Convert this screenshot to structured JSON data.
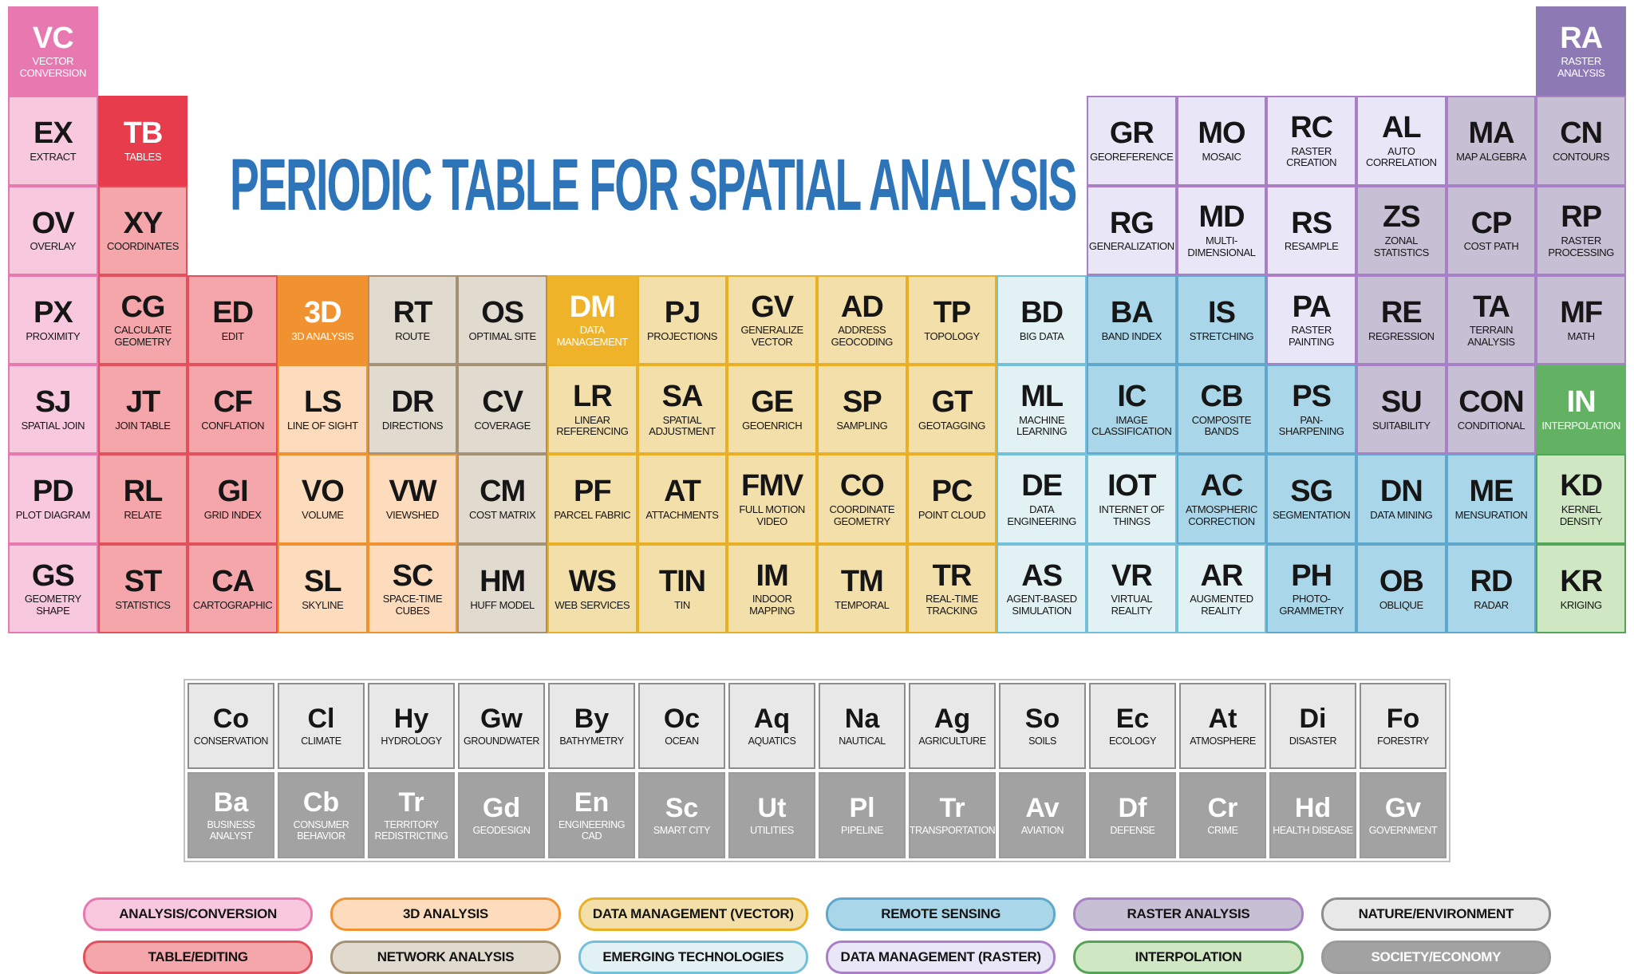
{
  "title": "PERIODIC TABLE FOR SPATIAL ANALYSIS",
  "title_color": "#2e74b8",
  "categories": {
    "analysis_conversion": {
      "legend_label": "ANALYSIS/CONVERSION",
      "fill": "#f8c9de",
      "border": "#e878b0",
      "header_fill": "#e878b0"
    },
    "table_editing": {
      "legend_label": "TABLE/EDITING",
      "fill": "#f4a6ab",
      "border": "#e2505c",
      "header_fill": "#e73c4c"
    },
    "analysis_3d": {
      "legend_label": "3D ANALYSIS",
      "fill": "#fcdcbd",
      "border": "#f0922f",
      "header_fill": "#f0922f"
    },
    "network_analysis": {
      "legend_label": "NETWORK ANALYSIS",
      "fill": "#e1dacf",
      "border": "#a59174"
    },
    "dm_vector": {
      "legend_label": "DATA MANAGEMENT (VECTOR)",
      "fill": "#f3dfa9",
      "border": "#e9af25",
      "header_fill": "#efb32a"
    },
    "emerging_tech": {
      "legend_label": "EMERGING TECHNOLOGIES",
      "fill": "#e2f1f4",
      "border": "#74c0da"
    },
    "remote_sensing": {
      "legend_label": "REMOTE SENSING",
      "fill": "#a9d6e9",
      "border": "#5fa8cc"
    },
    "dm_raster": {
      "legend_label": "DATA MANAGEMENT (RASTER)",
      "fill": "#e9e6f8",
      "border": "#ab7fc8"
    },
    "raster_analysis": {
      "legend_label": "RASTER ANALYSIS",
      "fill": "#c7bfd4",
      "border": "#a880c6",
      "header_fill": "#8d7ab5"
    },
    "interpolation": {
      "legend_label": "INTERPOLATION",
      "fill": "#cfe7c2",
      "border": "#55a357",
      "header_fill": "#63b163"
    },
    "nature_environment": {
      "legend_label": "NATURE/ENVIRONMENT",
      "fill": "#e8e8e8",
      "border": "#8d8d8d"
    },
    "society_economy": {
      "legend_label": "SOCIETY/ECONOMY",
      "fill": "#a2a2a2",
      "border": "#9a9a9a"
    }
  },
  "elements": [
    {
      "symbol": "VC",
      "name": "VECTOR CONVERSION",
      "col": 1,
      "row": 1,
      "cat": "analysis_conversion",
      "header": true
    },
    {
      "symbol": "RA",
      "name": "RASTER ANALYSIS",
      "col": 18,
      "row": 1,
      "cat": "raster_analysis",
      "header": true
    },
    {
      "symbol": "EX",
      "name": "EXTRACT",
      "col": 1,
      "row": 2,
      "cat": "analysis_conversion"
    },
    {
      "symbol": "TB",
      "name": "TABLES",
      "col": 2,
      "row": 2,
      "cat": "table_editing",
      "header": true
    },
    {
      "symbol": "GR",
      "name": "GEOREFERENCE",
      "col": 13,
      "row": 2,
      "cat": "dm_raster"
    },
    {
      "symbol": "MO",
      "name": "MOSAIC",
      "col": 14,
      "row": 2,
      "cat": "dm_raster"
    },
    {
      "symbol": "RC",
      "name": "RASTER CREATION",
      "col": 15,
      "row": 2,
      "cat": "dm_raster"
    },
    {
      "symbol": "AL",
      "name": "AUTO CORRELATION",
      "col": 16,
      "row": 2,
      "cat": "dm_raster"
    },
    {
      "symbol": "MA",
      "name": "MAP ALGEBRA",
      "col": 17,
      "row": 2,
      "cat": "raster_analysis"
    },
    {
      "symbol": "CN",
      "name": "CONTOURS",
      "col": 18,
      "row": 2,
      "cat": "raster_analysis"
    },
    {
      "symbol": "OV",
      "name": "OVERLAY",
      "col": 1,
      "row": 3,
      "cat": "analysis_conversion"
    },
    {
      "symbol": "XY",
      "name": "COORDINATES",
      "col": 2,
      "row": 3,
      "cat": "table_editing"
    },
    {
      "symbol": "RG",
      "name": "GENERALIZATION",
      "col": 13,
      "row": 3,
      "cat": "dm_raster"
    },
    {
      "symbol": "MD",
      "name": "MULTI-DIMENSIONAL",
      "col": 14,
      "row": 3,
      "cat": "dm_raster"
    },
    {
      "symbol": "RS",
      "name": "RESAMPLE",
      "col": 15,
      "row": 3,
      "cat": "dm_raster"
    },
    {
      "symbol": "ZS",
      "name": "ZONAL STATISTICS",
      "col": 16,
      "row": 3,
      "cat": "raster_analysis"
    },
    {
      "symbol": "CP",
      "name": "COST PATH",
      "col": 17,
      "row": 3,
      "cat": "raster_analysis"
    },
    {
      "symbol": "RP",
      "name": "RASTER PROCESSING",
      "col": 18,
      "row": 3,
      "cat": "raster_analysis"
    },
    {
      "symbol": "PX",
      "name": "PROXIMITY",
      "col": 1,
      "row": 4,
      "cat": "analysis_conversion"
    },
    {
      "symbol": "CG",
      "name": "CALCULATE GEOMETRY",
      "col": 2,
      "row": 4,
      "cat": "table_editing"
    },
    {
      "symbol": "ED",
      "name": "EDIT",
      "col": 3,
      "row": 4,
      "cat": "table_editing"
    },
    {
      "symbol": "3D",
      "name": "3D ANALYSIS",
      "col": 4,
      "row": 4,
      "cat": "analysis_3d",
      "header": true
    },
    {
      "symbol": "RT",
      "name": "ROUTE",
      "col": 5,
      "row": 4,
      "cat": "network_analysis"
    },
    {
      "symbol": "OS",
      "name": "OPTIMAL SITE",
      "col": 6,
      "row": 4,
      "cat": "network_analysis"
    },
    {
      "symbol": "DM",
      "name": "DATA MANAGEMENT",
      "col": 7,
      "row": 4,
      "cat": "dm_vector",
      "header": true
    },
    {
      "symbol": "PJ",
      "name": "PROJECTIONS",
      "col": 8,
      "row": 4,
      "cat": "dm_vector"
    },
    {
      "symbol": "GV",
      "name": "GENERALIZE VECTOR",
      "col": 9,
      "row": 4,
      "cat": "dm_vector"
    },
    {
      "symbol": "AD",
      "name": "ADDRESS GEOCODING",
      "col": 10,
      "row": 4,
      "cat": "dm_vector"
    },
    {
      "symbol": "TP",
      "name": "TOPOLOGY",
      "col": 11,
      "row": 4,
      "cat": "dm_vector"
    },
    {
      "symbol": "BD",
      "name": "BIG DATA",
      "col": 12,
      "row": 4,
      "cat": "emerging_tech"
    },
    {
      "symbol": "BA",
      "name": "BAND INDEX",
      "col": 13,
      "row": 4,
      "cat": "remote_sensing"
    },
    {
      "symbol": "IS",
      "name": "STRETCHING",
      "col": 14,
      "row": 4,
      "cat": "remote_sensing"
    },
    {
      "symbol": "PA",
      "name": "RASTER PAINTING",
      "col": 15,
      "row": 4,
      "cat": "dm_raster"
    },
    {
      "symbol": "RE",
      "name": "REGRESSION",
      "col": 16,
      "row": 4,
      "cat": "raster_analysis"
    },
    {
      "symbol": "TA",
      "name": "TERRAIN ANALYSIS",
      "col": 17,
      "row": 4,
      "cat": "raster_analysis"
    },
    {
      "symbol": "MF",
      "name": "MATH",
      "col": 18,
      "row": 4,
      "cat": "raster_analysis"
    },
    {
      "symbol": "SJ",
      "name": "SPATIAL JOIN",
      "col": 1,
      "row": 5,
      "cat": "analysis_conversion"
    },
    {
      "symbol": "JT",
      "name": "JOIN TABLE",
      "col": 2,
      "row": 5,
      "cat": "table_editing"
    },
    {
      "symbol": "CF",
      "name": "CONFLATION",
      "col": 3,
      "row": 5,
      "cat": "table_editing"
    },
    {
      "symbol": "LS",
      "name": "LINE OF SIGHT",
      "col": 4,
      "row": 5,
      "cat": "analysis_3d"
    },
    {
      "symbol": "DR",
      "name": "DIRECTIONS",
      "col": 5,
      "row": 5,
      "cat": "network_analysis"
    },
    {
      "symbol": "CV",
      "name": "COVERAGE",
      "col": 6,
      "row": 5,
      "cat": "network_analysis"
    },
    {
      "symbol": "LR",
      "name": "LINEAR REFERENCING",
      "col": 7,
      "row": 5,
      "cat": "dm_vector"
    },
    {
      "symbol": "SA",
      "name": "SPATIAL ADJUSTMENT",
      "col": 8,
      "row": 5,
      "cat": "dm_vector"
    },
    {
      "symbol": "GE",
      "name": "GEOENRICH",
      "col": 9,
      "row": 5,
      "cat": "dm_vector"
    },
    {
      "symbol": "SP",
      "name": "SAMPLING",
      "col": 10,
      "row": 5,
      "cat": "dm_vector"
    },
    {
      "symbol": "GT",
      "name": "GEOTAGGING",
      "col": 11,
      "row": 5,
      "cat": "dm_vector"
    },
    {
      "symbol": "ML",
      "name": "MACHINE LEARNING",
      "col": 12,
      "row": 5,
      "cat": "emerging_tech"
    },
    {
      "symbol": "IC",
      "name": "IMAGE CLASSIFICATION",
      "col": 13,
      "row": 5,
      "cat": "remote_sensing"
    },
    {
      "symbol": "CB",
      "name": "COMPOSITE BANDS",
      "col": 14,
      "row": 5,
      "cat": "remote_sensing"
    },
    {
      "symbol": "PS",
      "name": "PAN-SHARPENING",
      "col": 15,
      "row": 5,
      "cat": "remote_sensing"
    },
    {
      "symbol": "SU",
      "name": "SUITABILITY",
      "col": 16,
      "row": 5,
      "cat": "raster_analysis"
    },
    {
      "symbol": "CON",
      "name": "CONDITIONAL",
      "col": 17,
      "row": 5,
      "cat": "raster_analysis"
    },
    {
      "symbol": "IN",
      "name": "INTERPOLATION",
      "col": 18,
      "row": 5,
      "cat": "interpolation",
      "header": true
    },
    {
      "symbol": "PD",
      "name": "PLOT DIAGRAM",
      "col": 1,
      "row": 6,
      "cat": "analysis_conversion"
    },
    {
      "symbol": "RL",
      "name": "RELATE",
      "col": 2,
      "row": 6,
      "cat": "table_editing"
    },
    {
      "symbol": "GI",
      "name": "GRID INDEX",
      "col": 3,
      "row": 6,
      "cat": "table_editing"
    },
    {
      "symbol": "VO",
      "name": "VOLUME",
      "col": 4,
      "row": 6,
      "cat": "analysis_3d"
    },
    {
      "symbol": "VW",
      "name": "VIEWSHED",
      "col": 5,
      "row": 6,
      "cat": "analysis_3d"
    },
    {
      "symbol": "CM",
      "name": "COST MATRIX",
      "col": 6,
      "row": 6,
      "cat": "network_analysis"
    },
    {
      "symbol": "PF",
      "name": "PARCEL FABRIC",
      "col": 7,
      "row": 6,
      "cat": "dm_vector"
    },
    {
      "symbol": "AT",
      "name": "ATTACHMENTS",
      "col": 8,
      "row": 6,
      "cat": "dm_vector"
    },
    {
      "symbol": "FMV",
      "name": "FULL MOTION VIDEO",
      "col": 9,
      "row": 6,
      "cat": "dm_vector"
    },
    {
      "symbol": "CO",
      "name": "COORDINATE GEOMETRY",
      "col": 10,
      "row": 6,
      "cat": "dm_vector"
    },
    {
      "symbol": "PC",
      "name": "POINT CLOUD",
      "col": 11,
      "row": 6,
      "cat": "dm_vector"
    },
    {
      "symbol": "DE",
      "name": "DATA ENGINEERING",
      "col": 12,
      "row": 6,
      "cat": "emerging_tech"
    },
    {
      "symbol": "IOT",
      "name": "INTERNET OF THINGS",
      "col": 13,
      "row": 6,
      "cat": "emerging_tech"
    },
    {
      "symbol": "AC",
      "name": "ATMOSPHERIC CORRECTION",
      "col": 14,
      "row": 6,
      "cat": "remote_sensing"
    },
    {
      "symbol": "SG",
      "name": "SEGMENTATION",
      "col": 15,
      "row": 6,
      "cat": "remote_sensing"
    },
    {
      "symbol": "DN",
      "name": "DATA MINING",
      "col": 16,
      "row": 6,
      "cat": "remote_sensing"
    },
    {
      "symbol": "ME",
      "name": "MENSURATION",
      "col": 17,
      "row": 6,
      "cat": "remote_sensing"
    },
    {
      "symbol": "KD",
      "name": "KERNEL DENSITY",
      "col": 18,
      "row": 6,
      "cat": "interpolation"
    },
    {
      "symbol": "GS",
      "name": "GEOMETRY SHAPE",
      "col": 1,
      "row": 7,
      "cat": "analysis_conversion"
    },
    {
      "symbol": "ST",
      "name": "STATISTICS",
      "col": 2,
      "row": 7,
      "cat": "table_editing"
    },
    {
      "symbol": "CA",
      "name": "CARTOGRAPHIC",
      "col": 3,
      "row": 7,
      "cat": "table_editing"
    },
    {
      "symbol": "SL",
      "name": "SKYLINE",
      "col": 4,
      "row": 7,
      "cat": "analysis_3d"
    },
    {
      "symbol": "SC",
      "name": "SPACE-TIME CUBES",
      "col": 5,
      "row": 7,
      "cat": "analysis_3d"
    },
    {
      "symbol": "HM",
      "name": "HUFF MODEL",
      "col": 6,
      "row": 7,
      "cat": "network_analysis"
    },
    {
      "symbol": "WS",
      "name": "WEB SERVICES",
      "col": 7,
      "row": 7,
      "cat": "dm_vector"
    },
    {
      "symbol": "TIN",
      "name": "TIN",
      "col": 8,
      "row": 7,
      "cat": "dm_vector"
    },
    {
      "symbol": "IM",
      "name": "INDOOR MAPPING",
      "col": 9,
      "row": 7,
      "cat": "dm_vector"
    },
    {
      "symbol": "TM",
      "name": "TEMPORAL",
      "col": 10,
      "row": 7,
      "cat": "dm_vector"
    },
    {
      "symbol": "TR",
      "name": "REAL-TIME TRACKING",
      "col": 11,
      "row": 7,
      "cat": "dm_vector"
    },
    {
      "symbol": "AS",
      "name": "AGENT-BASED SIMULATION",
      "col": 12,
      "row": 7,
      "cat": "emerging_tech"
    },
    {
      "symbol": "VR",
      "name": "VIRTUAL REALITY",
      "col": 13,
      "row": 7,
      "cat": "emerging_tech"
    },
    {
      "symbol": "AR",
      "name": "AUGMENTED REALITY",
      "col": 14,
      "row": 7,
      "cat": "emerging_tech"
    },
    {
      "symbol": "PH",
      "name": "PHOTO-GRAMMETRY",
      "col": 15,
      "row": 7,
      "cat": "remote_sensing"
    },
    {
      "symbol": "OB",
      "name": "OBLIQUE",
      "col": 16,
      "row": 7,
      "cat": "remote_sensing"
    },
    {
      "symbol": "RD",
      "name": "RADAR",
      "col": 17,
      "row": 7,
      "cat": "remote_sensing"
    },
    {
      "symbol": "KR",
      "name": "KRIGING",
      "col": 18,
      "row": 7,
      "cat": "interpolation"
    }
  ],
  "application_fields": {
    "nature_row": [
      {
        "symbol": "Co",
        "name": "CONSERVATION"
      },
      {
        "symbol": "Cl",
        "name": "CLIMATE"
      },
      {
        "symbol": "Hy",
        "name": "HYDROLOGY"
      },
      {
        "symbol": "Gw",
        "name": "GROUNDWATER"
      },
      {
        "symbol": "By",
        "name": "BATHYMETRY"
      },
      {
        "symbol": "Oc",
        "name": "OCEAN"
      },
      {
        "symbol": "Aq",
        "name": "AQUATICS"
      },
      {
        "symbol": "Na",
        "name": "NAUTICAL"
      },
      {
        "symbol": "Ag",
        "name": "AGRICULTURE"
      },
      {
        "symbol": "So",
        "name": "SOILS"
      },
      {
        "symbol": "Ec",
        "name": "ECOLOGY"
      },
      {
        "symbol": "At",
        "name": "ATMOSPHERE"
      },
      {
        "symbol": "Di",
        "name": "DISASTER"
      },
      {
        "symbol": "Fo",
        "name": "FORESTRY"
      }
    ],
    "society_row": [
      {
        "symbol": "Ba",
        "name": "BUSINESS ANALYST"
      },
      {
        "symbol": "Cb",
        "name": "CONSUMER BEHAVIOR"
      },
      {
        "symbol": "Tr",
        "name": "TERRITORY REDISTRICTING"
      },
      {
        "symbol": "Gd",
        "name": "GEODESIGN"
      },
      {
        "symbol": "En",
        "name": "ENGINEERING CAD"
      },
      {
        "symbol": "Sc",
        "name": "SMART CITY"
      },
      {
        "symbol": "Ut",
        "name": "UTILITIES"
      },
      {
        "symbol": "Pl",
        "name": "PIPELINE"
      },
      {
        "symbol": "Tr",
        "name": "TRANSPORTATION"
      },
      {
        "symbol": "Av",
        "name": "AVIATION"
      },
      {
        "symbol": "Df",
        "name": "DEFENSE"
      },
      {
        "symbol": "Cr",
        "name": "CRIME"
      },
      {
        "symbol": "Hd",
        "name": "HEALTH DISEASE"
      },
      {
        "symbol": "Gv",
        "name": "GOVERNMENT"
      }
    ]
  },
  "legend": [
    {
      "cat": "analysis_conversion"
    },
    {
      "cat": "analysis_3d"
    },
    {
      "cat": "dm_vector"
    },
    {
      "cat": "remote_sensing"
    },
    {
      "cat": "raster_analysis"
    },
    {
      "cat": "nature_environment"
    },
    {
      "cat": "table_editing"
    },
    {
      "cat": "network_analysis"
    },
    {
      "cat": "emerging_tech"
    },
    {
      "cat": "dm_raster"
    },
    {
      "cat": "interpolation"
    },
    {
      "cat": "society_economy"
    }
  ]
}
